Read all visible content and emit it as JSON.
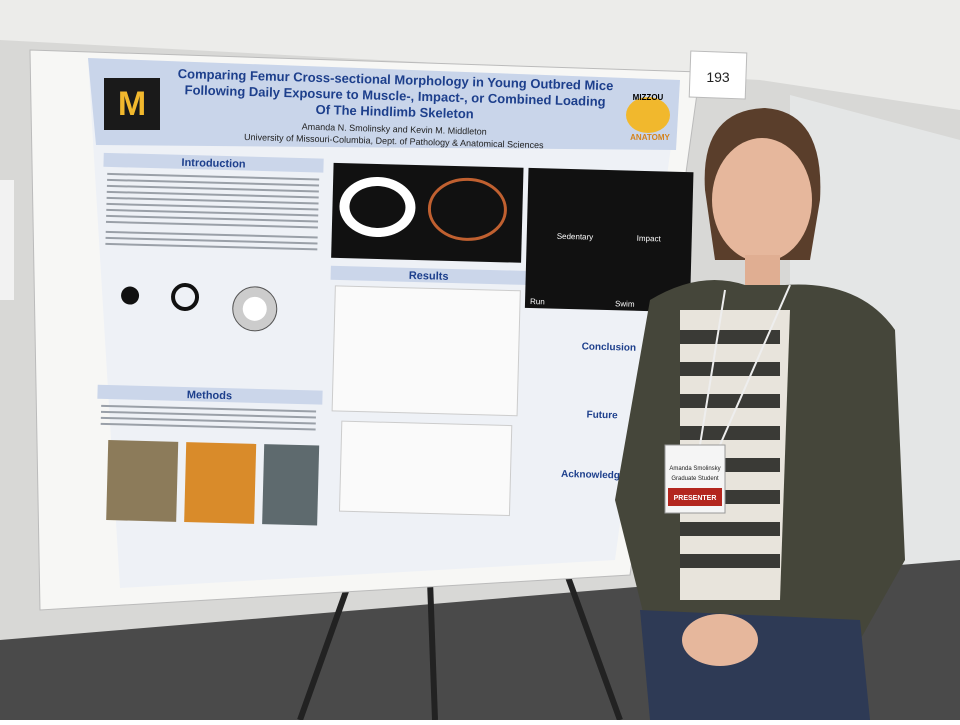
{
  "card_number": "193",
  "poster": {
    "title_lines": [
      "Comparing Femur Cross-sectional Morphology in Young Outbred Mice",
      "Following Daily Exposure to Muscle-, Impact-, or Combined Loading",
      "Of The Hindlimb Skeleton"
    ],
    "authors": "Amanda N. Smolinsky and Kevin M. Middleton",
    "affiliation": "University of Missouri-Columbia, Dept. of Pathology & Anatomical Sciences",
    "logo_top": "MIZZOU",
    "logo_bottom": "ANATOMY",
    "sections": [
      "Introduction",
      "Methods",
      "Results",
      "Conclusion",
      "Future",
      "Acknowledg"
    ],
    "image_labels": [
      "Sedentary",
      "Impact",
      "Run",
      "Swim"
    ]
  },
  "badge": {
    "name": "Amanda Smolinsky",
    "role": "Graduate Student",
    "ribbon": "PRESENTER"
  }
}
